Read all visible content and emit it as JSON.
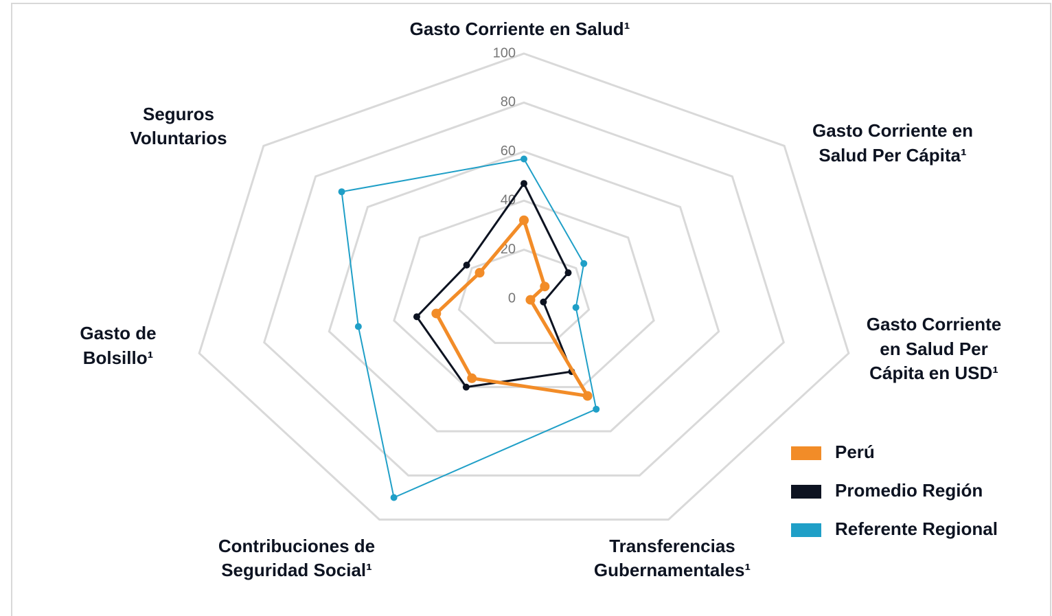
{
  "chart_data": {
    "type": "radar",
    "categories": [
      [
        "Gasto Corriente en Salud¹"
      ],
      [
        "Gasto Corriente en",
        "Salud Per Cápita¹"
      ],
      [
        "Gasto Corriente",
        "en Salud Per",
        "Cápita en USD¹"
      ],
      [
        "Transferencias",
        "Gubernamentales¹"
      ],
      [
        "Contribuciones de",
        "Seguridad Social¹"
      ],
      [
        "Gasto de",
        "Bolsillo¹"
      ],
      [
        "Seguros",
        "Voluntarios"
      ]
    ],
    "series": [
      {
        "name": "Perú",
        "color": "#f28c28",
        "values": [
          32,
          8,
          2,
          44,
          36,
          27,
          17
        ]
      },
      {
        "name": "Promedio Región",
        "color": "#0d1321",
        "values": [
          47,
          17,
          6,
          33,
          40,
          33,
          22
        ]
      },
      {
        "name": "Referente Regional",
        "color": "#1f9fc7",
        "values": [
          57,
          23,
          16,
          50,
          90,
          51,
          70
        ]
      }
    ],
    "ylim": [
      0,
      100
    ],
    "yticks": [
      0,
      20,
      40,
      60,
      80,
      100
    ],
    "grid": true,
    "legend": "lower right"
  }
}
